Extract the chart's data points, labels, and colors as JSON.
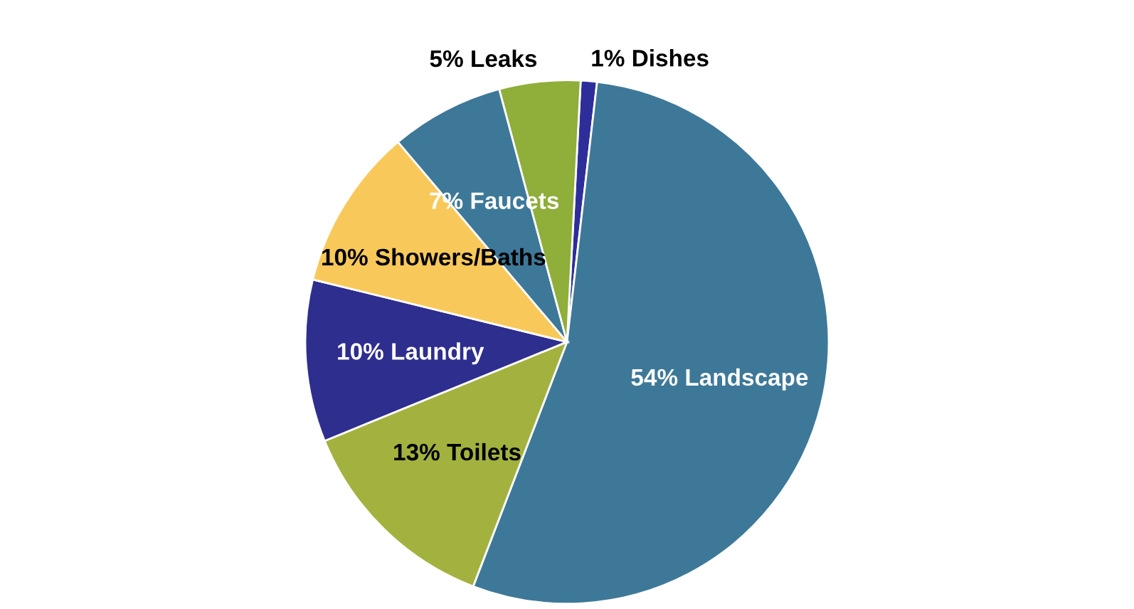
{
  "chart_data": {
    "type": "pie",
    "categories": [
      "Dishes",
      "Landscape",
      "Toilets",
      "Laundry",
      "Showers/Baths",
      "Faucets",
      "Leaks"
    ],
    "values": [
      1,
      54,
      13,
      10,
      10,
      7,
      5
    ],
    "value_labels": [
      "1%",
      "54%",
      "13%",
      "10%",
      "10%",
      "7%",
      "5%"
    ],
    "colors": [
      "#2e2e9a",
      "#3e7898",
      "#a3b23e",
      "#2e2e8f",
      "#f8c95a",
      "#3e7898",
      "#8fae3a"
    ]
  }
}
